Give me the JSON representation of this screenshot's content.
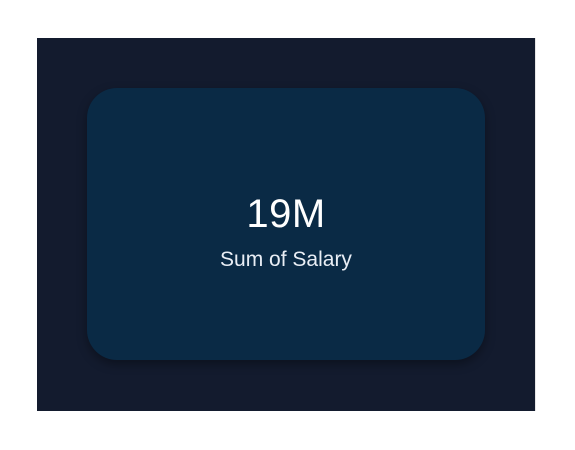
{
  "kpi_card": {
    "value": "19M",
    "label": "Sum of Salary"
  },
  "colors": {
    "page_background": "#ffffff",
    "frame_background": "#131b2e",
    "card_background": "#0a2a45",
    "text_primary": "#ffffff",
    "text_secondary": "#e9eef5"
  }
}
